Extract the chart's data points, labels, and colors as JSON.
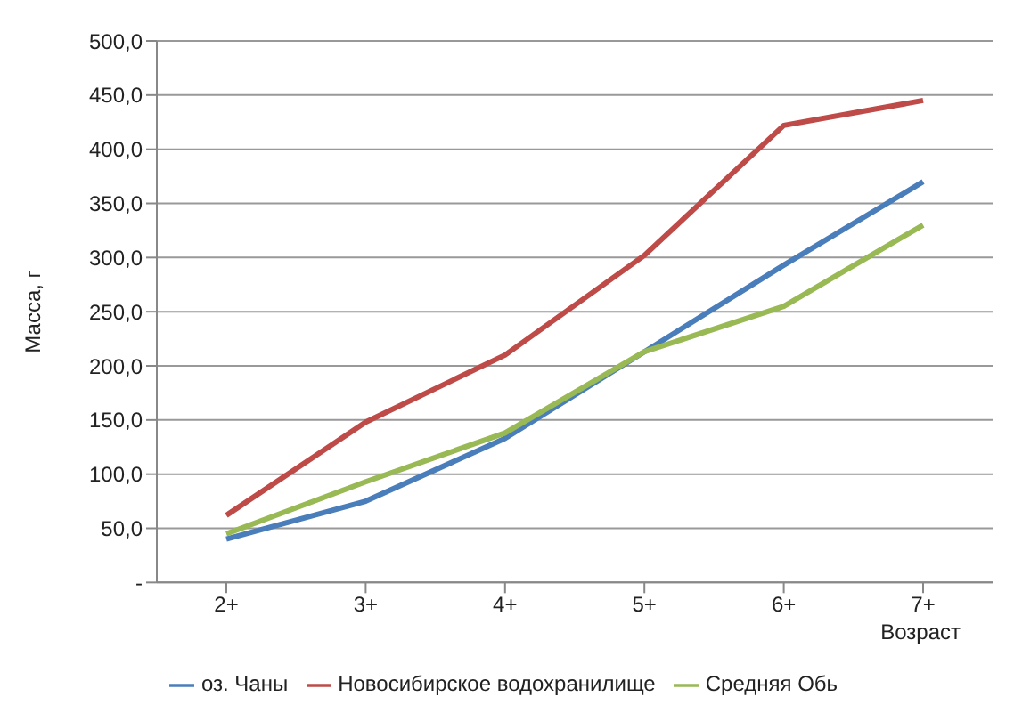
{
  "chart_data": {
    "type": "line",
    "xlabel": "Возраст",
    "ylabel": "Масса, г",
    "categories": [
      "2+",
      "3+",
      "4+",
      "5+",
      "6+",
      "7+"
    ],
    "series": [
      {
        "name": "оз. Чаны",
        "color": "#4a7ebb",
        "values": [
          40,
          75,
          133,
          213,
          293,
          370
        ]
      },
      {
        "name": "Новосибирское водохранилище",
        "color": "#be4b48",
        "values": [
          62,
          148,
          210,
          302,
          422,
          445
        ]
      },
      {
        "name": "Средняя Обь",
        "color": "#98b954",
        "values": [
          45,
          93,
          138,
          213,
          255,
          330
        ]
      }
    ],
    "ylim": [
      0,
      500
    ],
    "yticks": [
      {
        "value": 0,
        "label": "-"
      },
      {
        "value": 50,
        "label": "50,0"
      },
      {
        "value": 100,
        "label": "100,0"
      },
      {
        "value": 150,
        "label": "150,0"
      },
      {
        "value": 200,
        "label": "200,0"
      },
      {
        "value": 250,
        "label": "250,0"
      },
      {
        "value": 300,
        "label": "300,0"
      },
      {
        "value": 350,
        "label": "350,0"
      },
      {
        "value": 400,
        "label": "400,0"
      },
      {
        "value": 450,
        "label": "450,0"
      },
      {
        "value": 500,
        "label": "500,0"
      }
    ],
    "grid": "y",
    "legend": "bottom",
    "marker": "none",
    "line_style": "solid"
  }
}
